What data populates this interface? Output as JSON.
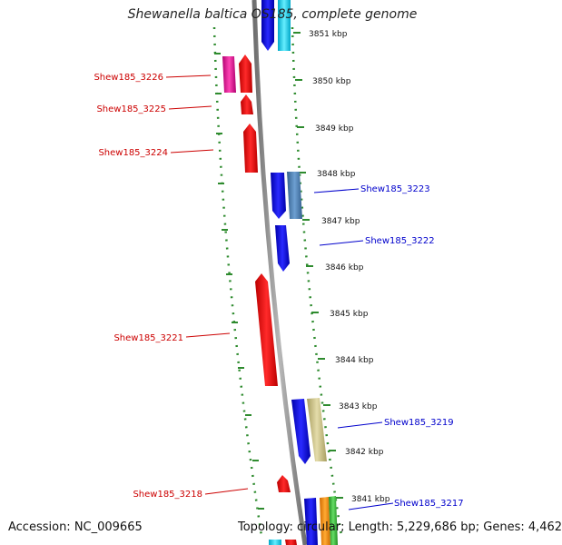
{
  "title": "Shewanella baltica OS185, complete genome",
  "footer": {
    "accession": "Accession: NC_009665",
    "topology": "Topology: circular; Length: 5,229,686 bp; Genes: 4,462"
  },
  "ticks": [
    {
      "label": "3851 kbp"
    },
    {
      "label": "3850 kbp"
    },
    {
      "label": "3849 kbp"
    },
    {
      "label": "3848 kbp"
    },
    {
      "label": "3847 kbp"
    },
    {
      "label": "3846 kbp"
    },
    {
      "label": "3845 kbp"
    },
    {
      "label": "3844 kbp"
    },
    {
      "label": "3843 kbp"
    },
    {
      "label": "3842 kbp"
    },
    {
      "label": "3841 kbp"
    }
  ],
  "genes": {
    "reverse": [
      {
        "label": "Shew185_3226",
        "color": "#cc0000"
      },
      {
        "label": "Shew185_3225",
        "color": "#cc0000"
      },
      {
        "label": "Shew185_3224",
        "color": "#cc0000"
      },
      {
        "label": "Shew185_3221",
        "color": "#cc0000"
      },
      {
        "label": "Shew185_3218",
        "color": "#cc0000"
      }
    ],
    "forward": [
      {
        "label": "Shew185_3223",
        "color": "#0000cc"
      },
      {
        "label": "Shew185_3222",
        "color": "#0000cc"
      },
      {
        "label": "Shew185_3219",
        "color": "#0000cc"
      },
      {
        "label": "Shew185_3217",
        "color": "#0000cc"
      }
    ]
  },
  "colors": {
    "backbone": "#8c8c8c",
    "dots": "#2e8b2e",
    "forward_gene": "#0000ee",
    "reverse_gene": "#ee0000",
    "magenta_gene": "#e0118f",
    "cyan_gene": "#00d0ee",
    "steelblue_gene": "#4a7fb5",
    "khaki_gene": "#c8c088",
    "orange_gene": "#ff8c00",
    "green_gene": "#33bb33"
  }
}
